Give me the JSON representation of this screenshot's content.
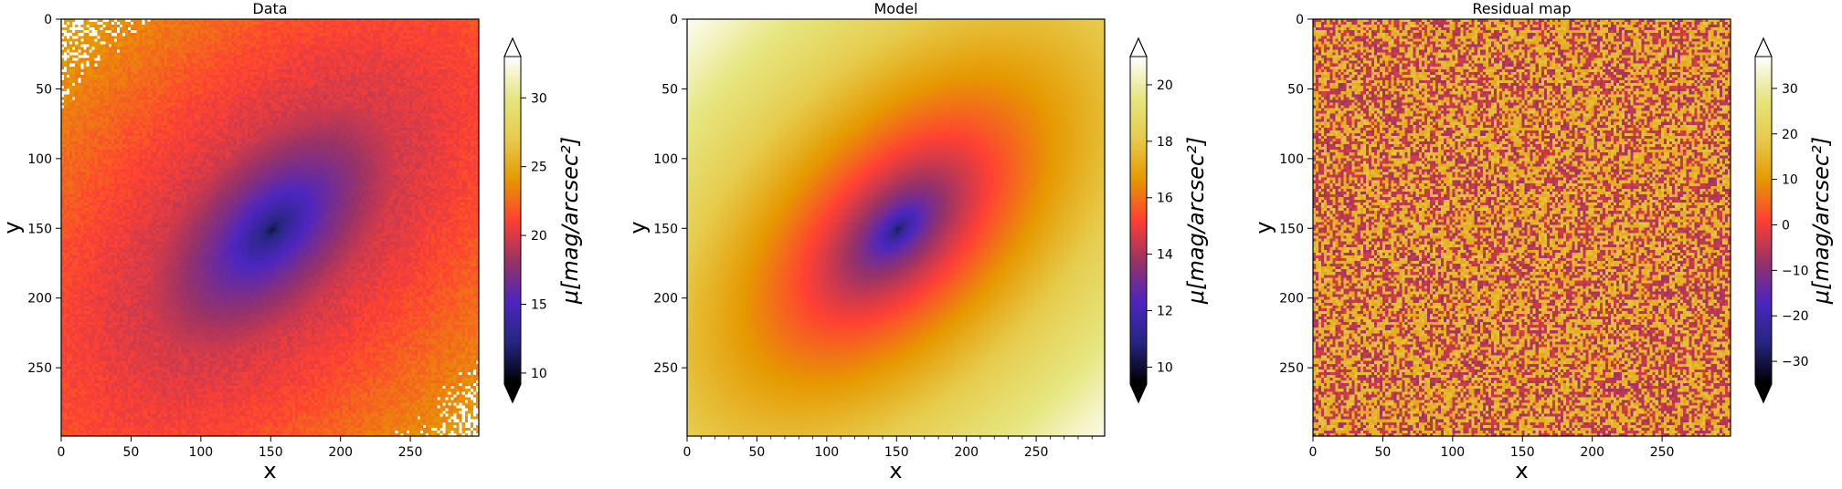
{
  "chart_data": [
    {
      "type": "heatmap",
      "title": "Data",
      "xlabel": "x",
      "ylabel": "y",
      "xlim": [
        0,
        299
      ],
      "ylim": [
        299,
        0
      ],
      "xticks": [
        0,
        50,
        100,
        150,
        200,
        250
      ],
      "yticks": [
        0,
        50,
        100,
        150,
        200,
        250
      ],
      "colormap": "CMRmap",
      "center": [
        150,
        150
      ],
      "colorbar": {
        "label": "μ[mag/arcsec²]",
        "ticks": [
          10,
          15,
          20,
          25,
          30
        ],
        "range": [
          9.2,
          33
        ],
        "extend": "both"
      }
    },
    {
      "type": "heatmap",
      "title": "Model",
      "xlabel": "x",
      "ylabel": "y",
      "xlim": [
        0,
        299
      ],
      "ylim": [
        299,
        0
      ],
      "xticks": [
        0,
        50,
        100,
        150,
        200,
        250
      ],
      "yticks": [
        0,
        50,
        100,
        150,
        200,
        250
      ],
      "colormap": "CMRmap",
      "center": [
        150,
        150
      ],
      "colorbar": {
        "label": "μ[mag/arcsec²]",
        "ticks": [
          10,
          12,
          14,
          16,
          18,
          20
        ],
        "range": [
          9.4,
          21
        ],
        "extend": "both"
      }
    },
    {
      "type": "heatmap",
      "title": "Residual map",
      "xlabel": "x",
      "ylabel": "y",
      "xlim": [
        0,
        299
      ],
      "ylim": [
        299,
        0
      ],
      "xticks": [
        0,
        50,
        100,
        150,
        200,
        250
      ],
      "yticks": [
        0,
        50,
        100,
        150,
        200,
        250
      ],
      "colormap": "CMRmap",
      "colorbar": {
        "label": "μ[mag/arcsec²]",
        "ticks": [
          -30,
          -20,
          -10,
          0,
          10,
          20,
          30
        ],
        "range": [
          -35,
          37
        ],
        "extend": "both"
      }
    }
  ],
  "colors": {
    "cmap_stops": [
      "#000000",
      "#262680",
      "#4d26bf",
      "#993366",
      "#ff4033",
      "#e69900",
      "#e6cc4d",
      "#e6e680",
      "#ffffff"
    ]
  }
}
